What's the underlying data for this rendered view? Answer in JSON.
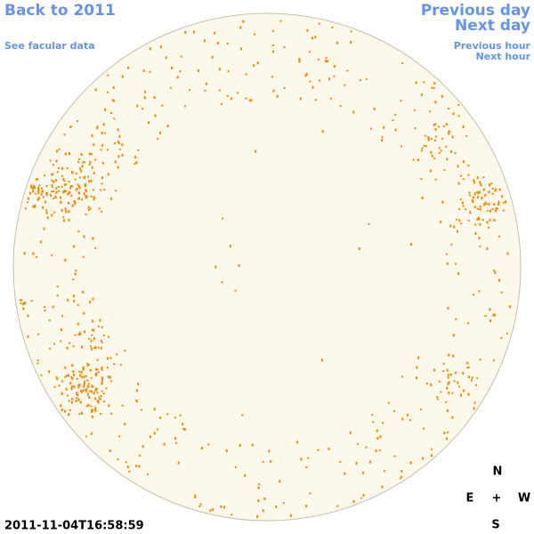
{
  "header": {
    "back_link": "Back to 2011",
    "facular_link": "See facular data"
  },
  "navigation": {
    "previous_day": "Previous day",
    "next_day": "Next day",
    "previous_hour": "Previous hour",
    "next_hour": "Next hour"
  },
  "timestamp": "2011-11-04T16:58:59",
  "compass": {
    "north": "N",
    "east": "E",
    "center": "+",
    "west": "W",
    "south": "S"
  }
}
